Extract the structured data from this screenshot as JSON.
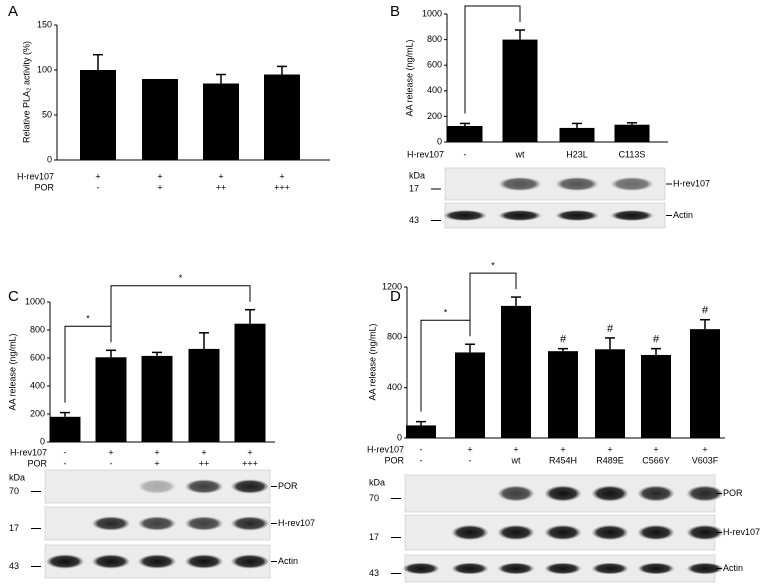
{
  "chart_data": [
    {
      "type": "bar",
      "panel": "A",
      "y_label": "Relative PLA₂ activity (%)",
      "values": [
        100,
        90,
        85,
        95
      ],
      "errors": [
        17,
        0,
        10,
        9
      ],
      "color": "#000000",
      "ylim": [
        0,
        150
      ],
      "yticks": [
        0,
        50,
        100,
        150
      ],
      "treatment_rows": [
        {
          "name": "H-rev107",
          "labels": [
            "+",
            "+",
            "+",
            "+"
          ]
        },
        {
          "name": "POR",
          "labels": [
            "-",
            "+",
            "++",
            "+++"
          ]
        }
      ]
    },
    {
      "type": "bar",
      "panel": "B",
      "y_label": "AA release (ng/mL)",
      "values": [
        125,
        800,
        110,
        135
      ],
      "errors": [
        20,
        75,
        35,
        15
      ],
      "color": "#000000",
      "ylim": [
        0,
        1000
      ],
      "yticks": [
        0,
        200,
        400,
        600,
        800,
        1000
      ],
      "treatment_rows": [
        {
          "name": "H-rev107",
          "labels": [
            "-",
            "wt",
            "H23L",
            "C113S"
          ]
        }
      ],
      "significance": [
        "*"
      ],
      "kda_label": "kDa",
      "blots": [
        {
          "name": "H-rev107",
          "kda": "17"
        },
        {
          "name": "Actin",
          "kda": "43"
        }
      ]
    },
    {
      "type": "bar",
      "panel": "C",
      "y_label": "AA release (ng/mL)",
      "values": [
        180,
        605,
        615,
        665,
        845
      ],
      "errors": [
        30,
        50,
        25,
        115,
        100
      ],
      "color": "#000000",
      "ylim": [
        0,
        1000
      ],
      "yticks": [
        0,
        200,
        400,
        600,
        800,
        1000
      ],
      "treatment_rows": [
        {
          "name": "H-rev107",
          "labels": [
            "-",
            "+",
            "+",
            "+",
            "+"
          ]
        },
        {
          "name": "POR",
          "labels": [
            "-",
            "-",
            "+",
            "++",
            "+++"
          ]
        }
      ],
      "significance": [
        "*",
        "*"
      ],
      "kda_label": "kDa",
      "blots": [
        {
          "name": "POR",
          "kda": "70"
        },
        {
          "name": "H-rev107",
          "kda": "17"
        },
        {
          "name": "Actin",
          "kda": "43"
        }
      ]
    },
    {
      "type": "bar",
      "panel": "D",
      "y_label": "AA release (ng/mL)",
      "values": [
        100,
        680,
        1050,
        690,
        705,
        660,
        865
      ],
      "errors": [
        30,
        65,
        70,
        20,
        90,
        50,
        75
      ],
      "color": "#000000",
      "ylim": [
        0,
        1200
      ],
      "yticks": [
        0,
        400,
        800,
        1200
      ],
      "treatment_rows": [
        {
          "name": "H-rev107",
          "labels": [
            "-",
            "+",
            "+",
            "+",
            "+",
            "+",
            "+"
          ]
        },
        {
          "name": "POR",
          "labels": [
            "-",
            "-",
            "wt",
            "R454H",
            "R489E",
            "C566Y",
            "V603F"
          ]
        }
      ],
      "significance": [
        "*",
        "*"
      ],
      "bar_marks": [
        null,
        null,
        null,
        "#",
        "#",
        "#",
        "#"
      ],
      "kda_label": "kDa",
      "blots": [
        {
          "name": "POR",
          "kda": "70"
        },
        {
          "name": "H-rev107",
          "kda": "17"
        },
        {
          "name": "Actin",
          "kda": "43"
        }
      ]
    }
  ]
}
